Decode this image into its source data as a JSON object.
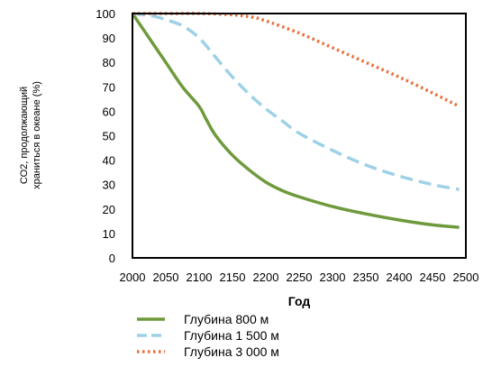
{
  "chart_data": {
    "type": "line",
    "xlabel": "Год",
    "ylabel_lines": [
      "СО2, продолжающий",
      "храниться в океане (%)"
    ],
    "xlim": [
      2000,
      2500
    ],
    "ylim": [
      0,
      100
    ],
    "xticks": [
      2000,
      2050,
      2100,
      2150,
      2200,
      2250,
      2300,
      2350,
      2400,
      2450,
      2500
    ],
    "yticks": [
      0,
      10,
      20,
      30,
      40,
      50,
      60,
      70,
      80,
      90,
      100
    ],
    "grid": false,
    "legend_position": "bottom",
    "series": [
      {
        "name": "Глубина 800 м",
        "color": "#6f9a3c",
        "style": "solid",
        "x": [
          2000,
          2025,
          2050,
          2075,
          2100,
          2110,
          2125,
          2150,
          2175,
          2200,
          2225,
          2250,
          2300,
          2350,
          2400,
          2450,
          2490
        ],
        "y": [
          100,
          90,
          80,
          70,
          62,
          57,
          50,
          42,
          36,
          31,
          27.5,
          25,
          21,
          18,
          15.5,
          13.5,
          12.5
        ]
      },
      {
        "name": "Глубина 1 500 м",
        "color": "#9fd1e6",
        "style": "dashed",
        "x": [
          2000,
          2030,
          2050,
          2075,
          2100,
          2125,
          2150,
          2175,
          2200,
          2225,
          2250,
          2300,
          2350,
          2400,
          2450,
          2490
        ],
        "y": [
          100,
          99,
          97.5,
          95,
          90,
          82,
          74,
          67,
          61,
          56,
          51,
          44,
          38,
          33.5,
          30,
          28
        ]
      },
      {
        "name": "Глубина 3 000 м",
        "color": "#e8703a",
        "style": "dotted",
        "x": [
          2000,
          2050,
          2100,
          2150,
          2180,
          2200,
          2250,
          2300,
          2350,
          2400,
          2450,
          2490
        ],
        "y": [
          100,
          100,
          100,
          99.5,
          98.5,
          97,
          92,
          86,
          80,
          74,
          67.5,
          62
        ]
      }
    ]
  }
}
